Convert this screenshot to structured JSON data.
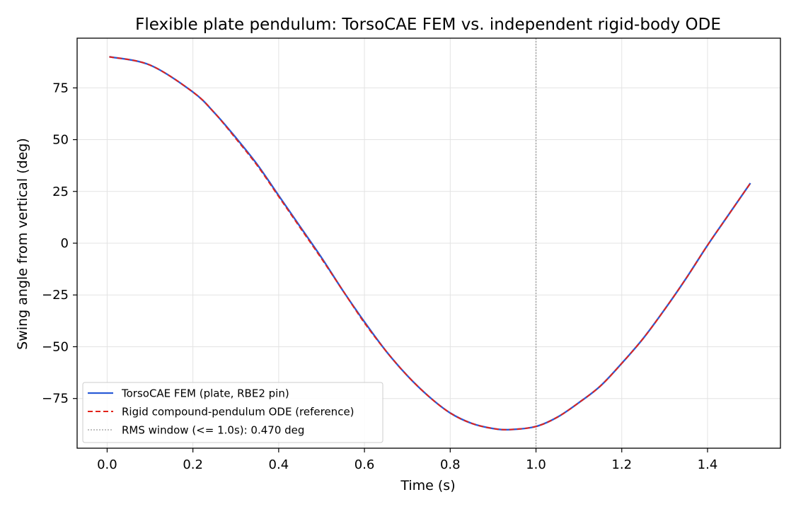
{
  "chart_data": {
    "type": "line",
    "title": "Flexible plate pendulum: TorsoCAE FEM vs. independent rigid-body ODE",
    "xlabel": "Time (s)",
    "ylabel": "Swing angle from vertical (deg)",
    "xlim": [
      -0.07,
      1.57
    ],
    "ylim": [
      -99,
      99
    ],
    "xticks": [
      0.0,
      0.2,
      0.4,
      0.6,
      0.8,
      1.0,
      1.2,
      1.4
    ],
    "xtick_labels": [
      "0.0",
      "0.2",
      "0.4",
      "0.6",
      "0.8",
      "1.0",
      "1.2",
      "1.4"
    ],
    "yticks": [
      -75,
      -50,
      -25,
      0,
      25,
      50,
      75
    ],
    "ytick_labels": [
      "−75",
      "−50",
      "−25",
      "0",
      "25",
      "50",
      "75"
    ],
    "grid": true,
    "legend_position": "lower-left",
    "x": [
      0.005,
      0.1,
      0.2,
      0.25,
      0.3,
      0.35,
      0.4,
      0.45,
      0.5,
      0.55,
      0.6,
      0.65,
      0.7,
      0.75,
      0.8,
      0.85,
      0.9,
      0.94,
      1.0,
      1.05,
      1.1,
      1.15,
      1.2,
      1.25,
      1.3,
      1.35,
      1.4,
      1.45,
      1.5
    ],
    "series": [
      {
        "name": "TorsoCAE FEM (plate, RBE2 pin)",
        "color": "#2a5bd7",
        "style": "solid",
        "values": [
          90,
          86,
          73,
          63,
          51,
          38,
          23,
          8,
          -7,
          -23,
          -38,
          -52,
          -64,
          -74,
          -82,
          -87,
          -89.5,
          -90,
          -88.5,
          -84,
          -77,
          -69,
          -58,
          -46,
          -32,
          -17,
          -1,
          14,
          29
        ]
      },
      {
        "name": "Rigid compound-pendulum ODE (reference)",
        "color": "#e2231a",
        "style": "dashed",
        "values": [
          90,
          86,
          73,
          63,
          50.5,
          37.5,
          22.5,
          7.5,
          -7.5,
          -23,
          -38.5,
          -52,
          -64,
          -74,
          -82,
          -87,
          -89.5,
          -90,
          -88.5,
          -84,
          -77,
          -69,
          -58,
          -46,
          -32,
          -17,
          -1,
          14,
          29
        ]
      }
    ],
    "reference_line": {
      "x": 1.0,
      "label": "RMS window (<= 1.0s): 0.470 deg",
      "color": "#999999",
      "style": "dotted"
    }
  }
}
